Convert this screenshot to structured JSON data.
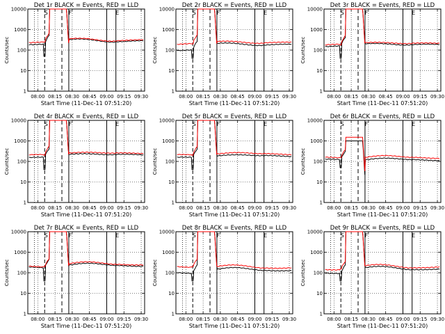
{
  "chart_data": [
    {
      "type": "line",
      "title": "Det 1r BLACK = Events, RED = LLD",
      "xlabel": "Start Time (11-Dec-11 07:51:20)",
      "ylabel": "Counts/sec",
      "yscale": "log",
      "ylim": [
        1,
        10000
      ],
      "xlim": [
        "07:51:20",
        "09:33:00"
      ],
      "grid": true,
      "xticks": [
        "08:00",
        "08:15",
        "08:30",
        "08:45",
        "09:00",
        "09:15",
        "09:30"
      ],
      "yticks": [
        "1",
        "10",
        "100",
        "1000",
        "10000"
      ],
      "markers": [
        {
          "label": "S",
          "time": "08:06"
        },
        {
          "label": "F",
          "time": "08:27"
        },
        {
          "label": "E",
          "time": "09:08"
        }
      ],
      "events_profile": {
        "base_before": 200,
        "peak": 10000,
        "base_after": 300,
        "dip": 50
      },
      "lld_profile": {
        "base_before": 250,
        "peak": 10000,
        "base_after": 330
      }
    },
    {
      "type": "line",
      "title": "Det 2r BLACK = Events, RED = LLD",
      "xlabel": "Start Time (11-Dec-11 07:51:20)",
      "ylabel": "Counts/sec",
      "yscale": "log",
      "ylim": [
        1,
        10000
      ],
      "xlim": [
        "07:51:20",
        "09:33:00"
      ],
      "grid": true,
      "xticks": [
        "08:00",
        "08:15",
        "08:30",
        "08:45",
        "09:00",
        "09:15",
        "09:30"
      ],
      "yticks": [
        "1",
        "10",
        "100",
        "1000",
        "10000"
      ],
      "markers": [
        {
          "label": "S",
          "time": "08:06"
        },
        {
          "label": "F",
          "time": "08:27"
        },
        {
          "label": "E",
          "time": "09:08"
        }
      ],
      "events_profile": {
        "base_before": 100,
        "peak": 10000,
        "base_after": 200,
        "dip": 40
      },
      "lld_profile": {
        "base_before": 200,
        "peak": 10000,
        "base_after": 250
      }
    },
    {
      "type": "line",
      "title": "Det 3r BLACK = Events, RED = LLD",
      "xlabel": "Start Time (11-Dec-11 07:51:20)",
      "ylabel": "Counts/sec",
      "yscale": "log",
      "ylim": [
        1,
        10000
      ],
      "xlim": [
        "07:51:20",
        "09:33:00"
      ],
      "grid": true,
      "xticks": [
        "08:00",
        "08:15",
        "08:30",
        "08:45",
        "09:00",
        "09:15",
        "09:30"
      ],
      "yticks": [
        "1",
        "10",
        "100",
        "1000",
        "10000"
      ],
      "markers": [
        {
          "label": "S",
          "time": "08:06"
        },
        {
          "label": "F",
          "time": "08:27"
        },
        {
          "label": "E",
          "time": "09:08"
        }
      ],
      "events_profile": {
        "base_before": 150,
        "peak": 10000,
        "base_after": 200,
        "dip": 40
      },
      "lld_profile": {
        "base_before": 180,
        "peak": 10000,
        "base_after": 230
      }
    },
    {
      "type": "line",
      "title": "Det 4r BLACK = Events, RED = LLD",
      "xlabel": "Start Time (11-Dec-11 07:51:20)",
      "ylabel": "Counts/sec",
      "yscale": "log",
      "ylim": [
        1,
        10000
      ],
      "xlim": [
        "07:51:20",
        "09:33:00"
      ],
      "grid": true,
      "xticks": [
        "08:00",
        "08:15",
        "08:30",
        "08:45",
        "09:00",
        "09:15",
        "09:30"
      ],
      "yticks": [
        "1",
        "10",
        "100",
        "1000",
        "10000"
      ],
      "markers": [
        {
          "label": "S",
          "time": "08:06"
        },
        {
          "label": "F",
          "time": "08:27"
        },
        {
          "label": "E",
          "time": "09:08"
        }
      ],
      "events_profile": {
        "base_before": 150,
        "peak": 10000,
        "base_after": 230,
        "dip": 40
      },
      "lld_profile": {
        "base_before": 200,
        "peak": 10000,
        "base_after": 270
      }
    },
    {
      "type": "line",
      "title": "Det 5r BLACK = Events, RED = LLD",
      "xlabel": "Start Time (11-Dec-11 07:51:20)",
      "ylabel": "Counts/sec",
      "yscale": "log",
      "ylim": [
        1,
        10000
      ],
      "xlim": [
        "07:51:20",
        "09:33:00"
      ],
      "grid": true,
      "xticks": [
        "08:00",
        "08:15",
        "08:30",
        "08:45",
        "09:00",
        "09:15",
        "09:30"
      ],
      "yticks": [
        "1",
        "10",
        "100",
        "1000",
        "10000"
      ],
      "markers": [
        {
          "label": "S",
          "time": "08:06"
        },
        {
          "label": "F",
          "time": "08:27"
        },
        {
          "label": "E",
          "time": "09:08"
        }
      ],
      "events_profile": {
        "base_before": 150,
        "peak": 10000,
        "base_after": 200,
        "dip": 40
      },
      "lld_profile": {
        "base_before": 200,
        "peak": 10000,
        "base_after": 250
      }
    },
    {
      "type": "line",
      "title": "Det 6r BLACK = Events, RED = LLD",
      "xlabel": "Start Time (11-Dec-11 07:51:20)",
      "ylabel": "Counts/sec",
      "yscale": "log",
      "ylim": [
        1,
        10000
      ],
      "xlim": [
        "07:51:20",
        "09:33:00"
      ],
      "grid": true,
      "xticks": [
        "08:00",
        "08:15",
        "08:30",
        "08:45",
        "09:00",
        "09:15",
        "09:30"
      ],
      "yticks": [
        "1",
        "10",
        "100",
        "1000",
        "10000"
      ],
      "markers": [
        {
          "label": "S",
          "time": "08:06"
        },
        {
          "label": "F",
          "time": "08:27"
        },
        {
          "label": "E",
          "time": "09:08"
        }
      ],
      "events_profile": {
        "base_before": 120,
        "peak": 1000,
        "base_after": 130,
        "dip": 50
      },
      "lld_profile": {
        "base_before": 150,
        "peak": 1500,
        "base_after": 170
      }
    },
    {
      "type": "line",
      "title": "Det 7r BLACK = Events, RED = LLD",
      "xlabel": "Start Time (11-Dec-11 07:51:20)",
      "ylabel": "Counts/sec",
      "yscale": "log",
      "ylim": [
        1,
        10000
      ],
      "xlim": [
        "07:51:20",
        "09:33:00"
      ],
      "grid": true,
      "xticks": [
        "08:00",
        "08:15",
        "08:30",
        "08:45",
        "09:00",
        "09:15",
        "09:30"
      ],
      "yticks": [
        "1",
        "10",
        "100",
        "1000",
        "10000"
      ],
      "markers": [
        {
          "label": "S",
          "time": "08:06"
        },
        {
          "label": "F",
          "time": "08:27"
        },
        {
          "label": "E",
          "time": "09:08"
        }
      ],
      "events_profile": {
        "base_before": 180,
        "peak": 10000,
        "base_after": 250,
        "dip": 40
      },
      "lld_profile": {
        "base_before": 200,
        "peak": 10000,
        "base_after": 290
      }
    },
    {
      "type": "line",
      "title": "Det 8r BLACK = Events, RED = LLD",
      "xlabel": "Start Time (11-Dec-11 07:51:20)",
      "ylabel": "Counts/sec",
      "yscale": "log",
      "ylim": [
        1,
        10000
      ],
      "xlim": [
        "07:51:20",
        "09:33:00"
      ],
      "grid": true,
      "xticks": [
        "08:00",
        "08:15",
        "08:30",
        "08:45",
        "09:00",
        "09:15",
        "09:30"
      ],
      "yticks": [
        "1",
        "10",
        "100",
        "1000",
        "10000"
      ],
      "markers": [
        {
          "label": "S",
          "time": "08:06"
        },
        {
          "label": "F",
          "time": "08:27"
        },
        {
          "label": "E",
          "time": "09:08"
        }
      ],
      "events_profile": {
        "base_before": 100,
        "peak": 10000,
        "base_after": 150,
        "dip": 40
      },
      "lld_profile": {
        "base_before": 200,
        "peak": 10000,
        "base_after": 200
      }
    },
    {
      "type": "line",
      "title": "Det 9r BLACK = Events, RED = LLD",
      "xlabel": "Start Time (11-Dec-11 07:51:20)",
      "ylabel": "Counts/sec",
      "yscale": "log",
      "ylim": [
        1,
        10000
      ],
      "xlim": [
        "07:51:20",
        "09:33:00"
      ],
      "grid": true,
      "xticks": [
        "08:00",
        "08:15",
        "08:30",
        "08:45",
        "09:00",
        "09:15",
        "09:30"
      ],
      "yticks": [
        "1",
        "10",
        "100",
        "1000",
        "10000"
      ],
      "markers": [
        {
          "label": "S",
          "time": "08:06"
        },
        {
          "label": "F",
          "time": "08:27"
        },
        {
          "label": "E",
          "time": "09:08"
        }
      ],
      "events_profile": {
        "base_before": 100,
        "peak": 10000,
        "base_after": 170,
        "dip": 40
      },
      "lld_profile": {
        "base_before": 150,
        "peak": 10000,
        "base_after": 210
      }
    }
  ],
  "colors": {
    "events": "#000000",
    "lld": "#ff0000",
    "axis": "#000000",
    "grid": "#000000"
  }
}
